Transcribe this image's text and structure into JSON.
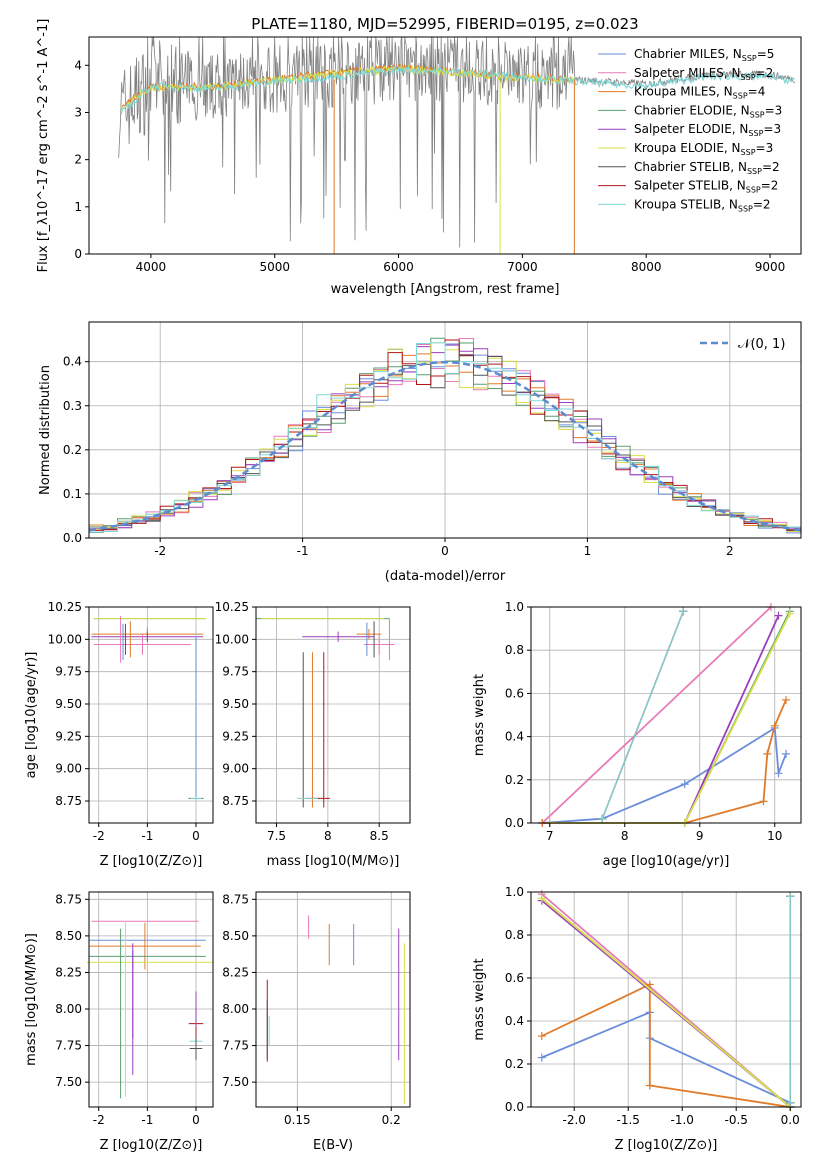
{
  "colors": {
    "series": [
      "#6a8ddb",
      "#e87ab8",
      "#e07b2a",
      "#5a9e6e",
      "#9b3fbf",
      "#d8e04a",
      "#555555",
      "#b01818",
      "#7ed8d8"
    ],
    "spec_gray": "#808080",
    "grid": "#b0b0b0"
  },
  "series_names": [
    "Chabrier MILES, N_SSP=5",
    "Salpeter MILES, N_SSP=2",
    "Kroupa MILES, N_SSP=4",
    "Chabrier ELODIE, N_SSP=3",
    "Salpeter ELODIE, N_SSP=3",
    "Kroupa ELODIE, N_SSP=3",
    "Chabrier STELIB, N_SSP=2",
    "Salpeter STELIB, N_SSP=2",
    "Kroupa STELIB, N_SSP=2"
  ],
  "chart_data": [
    {
      "id": "spectrum",
      "type": "line",
      "title": "PLATE=1180, MJD=52995, FIBERID=0195, z=0.023",
      "xlabel": "wavelength [Angstrom, rest frame]",
      "ylabel": "Flux [f_λ10^-17 erg cm^-2 s^-1 A^-1]",
      "xlim": [
        3500,
        9250
      ],
      "ylim": [
        0,
        4.6
      ],
      "xticks": [
        4000,
        5000,
        6000,
        7000,
        8000,
        9000
      ],
      "yticks": [
        0,
        1,
        2,
        3,
        4
      ],
      "legend": "top-right",
      "data_x": [
        3750,
        4000,
        4500,
        5000,
        5500,
        6000,
        6500,
        7000,
        7400,
        8000,
        8500,
        9000,
        9200
      ],
      "data_y": [
        3.0,
        3.6,
        3.55,
        3.7,
        3.8,
        3.95,
        3.9,
        3.8,
        3.7,
        3.6,
        3.8,
        3.8,
        3.7
      ],
      "model_x": [
        3750,
        4000,
        4500,
        5000,
        5500,
        6000,
        6500,
        7000,
        7420
      ],
      "model_y": [
        3.1,
        3.55,
        3.55,
        3.7,
        3.85,
        3.95,
        3.85,
        3.75,
        3.7
      ]
    },
    {
      "id": "histogram",
      "type": "line",
      "xlabel": "(data-model)/error",
      "ylabel": "Normed distribution",
      "xlim": [
        -2.5,
        2.5
      ],
      "ylim": [
        0,
        0.49
      ],
      "xticks": [
        -2,
        -1,
        0,
        1,
        2
      ],
      "yticks": [
        0.0,
        0.1,
        0.2,
        0.3,
        0.4
      ],
      "legend_label": "𝒩(0, 1)",
      "legend": "top-right",
      "grid": true
    },
    {
      "id": "age-vs-Z",
      "type": "scatter",
      "xlabel": "Z [log10(Z/Z⊙)]",
      "ylabel": "age [log10(age/yr)]",
      "xlim": [
        -2.2,
        0.35
      ],
      "ylim": [
        8.58,
        10.25
      ],
      "xticks": [
        -2,
        -1,
        0
      ],
      "yticks": [
        8.75,
        9.0,
        9.25,
        9.5,
        9.75,
        10.0,
        10.25
      ],
      "grid": true
    },
    {
      "id": "age-vs-mass",
      "type": "scatter",
      "xlabel": "mass [log10(M/M⊙)]",
      "ylabel": "",
      "xlim": [
        7.3,
        8.8
      ],
      "ylim": [
        8.58,
        10.25
      ],
      "xticks": [
        7.5,
        8.0,
        8.5
      ],
      "yticks": [
        8.75,
        9.0,
        9.25,
        9.5,
        9.75,
        10.0,
        10.25
      ],
      "grid": true
    },
    {
      "id": "massweight-vs-age",
      "type": "line",
      "xlabel": "age [log10(age/yr)]",
      "ylabel": "mass weight",
      "xlim": [
        6.75,
        10.35
      ],
      "ylim": [
        0,
        1.0
      ],
      "xticks": [
        7,
        8,
        9,
        10
      ],
      "yticks": [
        0.0,
        0.2,
        0.4,
        0.6,
        0.8,
        1.0
      ],
      "grid": true,
      "series": [
        {
          "x": [
            6.9,
            7.7,
            8.8,
            10.0,
            10.05,
            10.15
          ],
          "y": [
            0.0,
            0.02,
            0.18,
            0.44,
            0.23,
            0.32
          ]
        },
        {
          "x": [
            6.9,
            9.95
          ],
          "y": [
            0.0,
            1.0
          ]
        },
        {
          "x": [
            6.9,
            8.8,
            9.85,
            9.9,
            10.0,
            10.15
          ],
          "y": [
            0.0,
            0.0,
            0.1,
            0.32,
            0.45,
            0.57
          ]
        },
        {
          "x": [
            7.0,
            8.8,
            10.2
          ],
          "y": [
            0.0,
            0.0,
            0.98
          ]
        },
        {
          "x": [
            7.0,
            8.8,
            10.05
          ],
          "y": [
            0.0,
            0.0,
            0.96
          ]
        },
        {
          "x": [
            7.0,
            8.8,
            10.2
          ],
          "y": [
            0.0,
            0.0,
            0.97
          ]
        },
        {
          "x": [
            7.7,
            8.78
          ],
          "y": [
            0.02,
            0.98
          ]
        },
        {
          "x": [
            7.7,
            8.78
          ],
          "y": [
            0.02,
            0.98
          ]
        },
        {
          "x": [
            7.7,
            8.78
          ],
          "y": [
            0.02,
            0.98
          ]
        }
      ]
    },
    {
      "id": "mass-vs-Z",
      "type": "scatter",
      "xlabel": "Z [log10(Z/Z⊙)]",
      "ylabel": "mass [log10(M/M⊙)]",
      "xlim": [
        -2.2,
        0.35
      ],
      "ylim": [
        7.33,
        8.8
      ],
      "xticks": [
        -2,
        -1,
        0
      ],
      "yticks": [
        7.5,
        7.75,
        8.0,
        8.25,
        8.5,
        8.75
      ],
      "grid": true
    },
    {
      "id": "mass-vs-EBV",
      "type": "scatter",
      "xlabel": "E(B-V)",
      "ylabel": "",
      "xlim": [
        0.128,
        0.21
      ],
      "ylim": [
        7.33,
        8.8
      ],
      "xticks": [
        0.15,
        0.2
      ],
      "yticks": [
        7.5,
        7.75,
        8.0,
        8.25,
        8.5,
        8.75
      ],
      "grid": true
    },
    {
      "id": "massweight-vs-Z",
      "type": "line",
      "xlabel": "Z [log10(Z/Z⊙)]",
      "ylabel": "mass weight",
      "xlim": [
        -2.4,
        0.1
      ],
      "ylim": [
        0,
        1.0
      ],
      "xticks": [
        -2.0,
        -1.5,
        -1.0,
        -0.5,
        0.0
      ],
      "yticks": [
        0.0,
        0.2,
        0.4,
        0.6,
        0.8,
        1.0
      ],
      "grid": true,
      "series": [
        {
          "x": [
            -2.3,
            -1.3,
            -1.3,
            0.0,
            0.0
          ],
          "y": [
            0.23,
            0.44,
            0.32,
            0.02,
            0.0
          ]
        },
        {
          "x": [
            -2.3,
            0.0
          ],
          "y": [
            0.99,
            0.0
          ]
        },
        {
          "x": [
            -2.3,
            -1.3,
            -1.3,
            0.0
          ],
          "y": [
            0.33,
            0.57,
            0.1,
            0.0
          ]
        },
        {
          "x": [
            -2.3,
            0.0
          ],
          "y": [
            0.97,
            0.0
          ]
        },
        {
          "x": [
            -2.3,
            0.0
          ],
          "y": [
            0.96,
            0.0
          ]
        },
        {
          "x": [
            -2.3,
            0.0
          ],
          "y": [
            0.97,
            0.0
          ]
        },
        {
          "x": [
            0.0,
            0.0
          ],
          "y": [
            0.02,
            0.98
          ]
        },
        {
          "x": [
            0.0,
            0.0
          ],
          "y": [
            0.02,
            0.98
          ]
        },
        {
          "x": [
            0.0,
            0.0
          ],
          "y": [
            0.02,
            0.98
          ]
        }
      ]
    }
  ]
}
